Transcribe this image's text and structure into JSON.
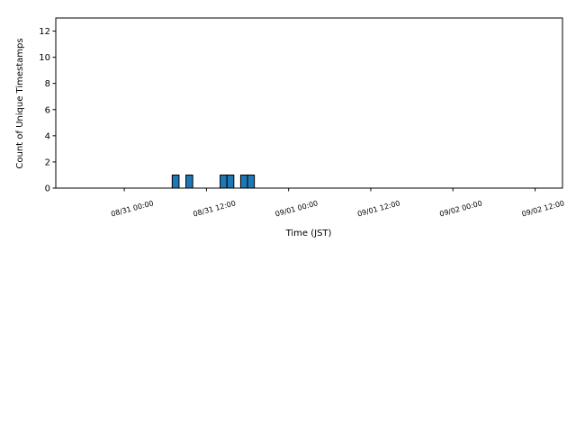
{
  "chart_data": {
    "type": "histogram",
    "xlabel": "Time (JST)",
    "ylabel": "Count of Unique Timestamps",
    "bins": [
      "08/30 15:00",
      "08/30 16:00",
      "08/30 17:00",
      "08/30 18:00",
      "08/30 19:00",
      "08/30 20:00",
      "08/30 21:00",
      "08/30 22:00",
      "08/30 23:00",
      "08/31 00:00",
      "08/31 01:00",
      "08/31 02:00",
      "08/31 03:00",
      "08/31 04:00",
      "08/31 05:00",
      "08/31 06:00",
      "08/31 07:00",
      "08/31 08:00",
      "08/31 09:00",
      "08/31 10:00",
      "08/31 11:00",
      "08/31 12:00",
      "08/31 13:00",
      "08/31 14:00",
      "08/31 15:00",
      "08/31 16:00",
      "08/31 17:00",
      "08/31 18:00",
      "08/31 19:00",
      "08/31 20:00",
      "08/31 21:00",
      "08/31 22:00",
      "08/31 23:00",
      "09/01 00:00",
      "09/01 01:00",
      "09/01 02:00",
      "09/01 03:00",
      "09/01 04:00",
      "09/01 05:00",
      "09/01 06:00",
      "09/01 07:00",
      "09/01 08:00",
      "09/01 09:00",
      "09/01 10:00",
      "09/01 11:00",
      "09/01 12:00",
      "09/01 13:00",
      "09/01 14:00",
      "09/01 15:00",
      "09/01 16:00",
      "09/01 17:00",
      "09/01 18:00",
      "09/01 19:00",
      "09/01 20:00",
      "09/01 21:00",
      "09/01 22:00",
      "09/01 23:00",
      "09/02 00:00",
      "09/02 01:00",
      "09/02 02:00",
      "09/02 03:00",
      "09/02 04:00",
      "09/02 05:00",
      "09/02 06:00",
      "09/02 07:00",
      "09/02 08:00",
      "09/02 09:00",
      "09/02 10:00",
      "09/02 11:00",
      "09/02 12:00",
      "09/02 13:00",
      "09/02 14:00"
    ],
    "values": [
      0,
      0,
      0,
      0,
      0,
      0,
      0,
      0,
      0,
      0,
      0,
      0,
      0,
      0,
      0,
      0,
      1,
      0,
      1,
      0,
      0,
      0,
      0,
      1,
      1,
      0,
      1,
      1,
      0,
      0,
      0,
      0,
      0,
      0,
      0,
      0,
      0,
      0,
      0,
      0,
      0,
      0,
      0,
      0,
      0,
      0,
      0,
      0,
      0,
      0,
      0,
      0,
      0,
      0,
      0,
      0,
      0,
      0,
      0,
      0,
      0,
      0,
      0,
      0,
      0,
      0,
      0,
      0,
      0,
      0,
      0
    ],
    "color": "#1f77b4",
    "edgecolor": "#000000",
    "xlim": [
      "08/30 14:00",
      "09/02 16:00"
    ],
    "xticks": [
      "08/31 00:00",
      "08/31 12:00",
      "09/01 00:00",
      "09/01 12:00",
      "09/02 00:00",
      "09/02 12:00"
    ],
    "ylim": [
      0,
      13
    ],
    "yticks": [
      0,
      2,
      4,
      6,
      8,
      10,
      12
    ]
  }
}
